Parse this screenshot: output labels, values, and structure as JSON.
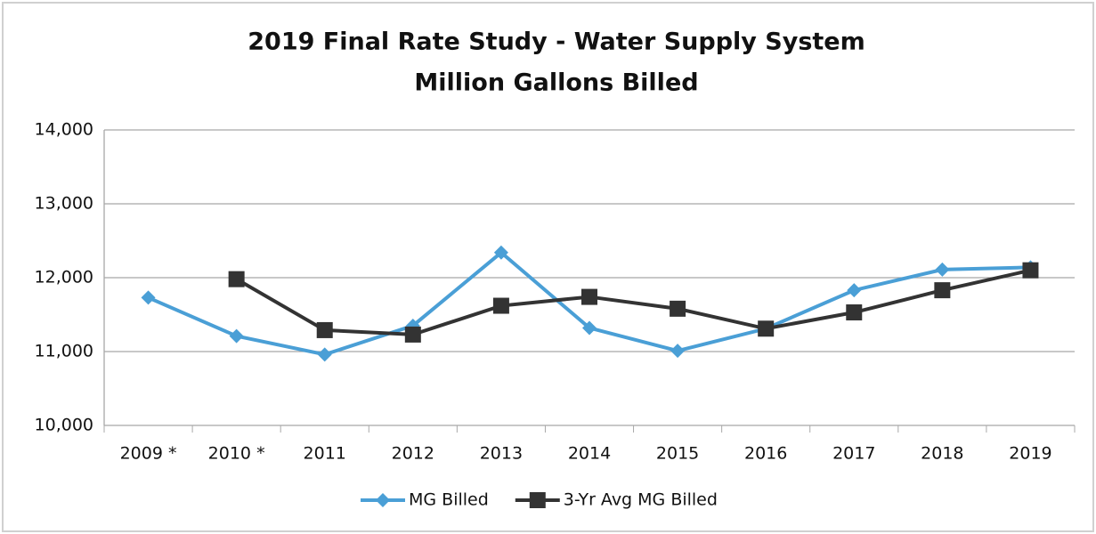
{
  "chart_data": {
    "type": "line",
    "title": "2019 Final Rate Study - Water Supply System",
    "subtitle": "Million Gallons Billed",
    "categories": [
      "2009 *",
      "2010 *",
      "2011",
      "2012",
      "2013",
      "2014",
      "2015",
      "2016",
      "2017",
      "2018",
      "2019"
    ],
    "series": [
      {
        "name": "MG Billed",
        "color": "#4a9fd6",
        "marker": "diamond",
        "values": [
          11730,
          11210,
          10960,
          11350,
          12340,
          11320,
          11010,
          11310,
          11830,
          12110,
          12140
        ]
      },
      {
        "name": "3-Yr Avg MG Billed",
        "color": "#333333",
        "marker": "square",
        "values": [
          null,
          11980,
          11290,
          11230,
          11620,
          11740,
          11580,
          11310,
          11530,
          11830,
          12100
        ]
      }
    ],
    "ylim": [
      10000,
      14000
    ],
    "yticks": [
      {
        "value": 10000,
        "label": "10,000"
      },
      {
        "value": 11000,
        "label": "11,000"
      },
      {
        "value": 12000,
        "label": "12,000"
      },
      {
        "value": 13000,
        "label": "13,000"
      },
      {
        "value": 14000,
        "label": "14,000"
      }
    ],
    "grid": true,
    "legend": "bottom"
  }
}
